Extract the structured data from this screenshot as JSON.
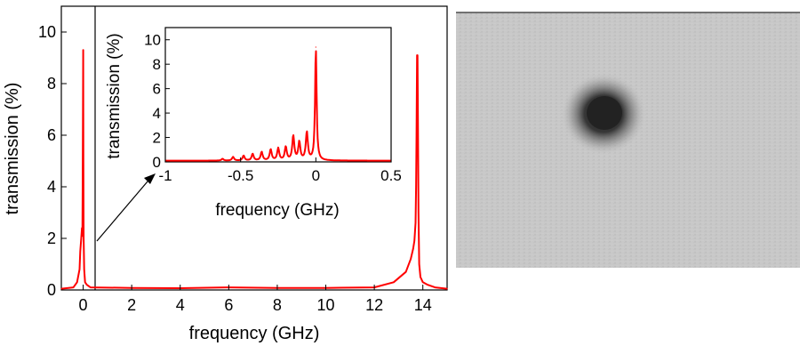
{
  "chart_data": [
    {
      "type": "line",
      "panel": "main",
      "xlabel": "frequency (GHz)",
      "ylabel": "transmission (%)",
      "xlim": [
        -0.9,
        15.0
      ],
      "ylim": [
        0,
        11
      ],
      "xticks": [
        0,
        2,
        4,
        6,
        8,
        10,
        12,
        14
      ],
      "yticks": [
        0,
        2,
        4,
        6,
        8,
        10
      ],
      "grid": false,
      "series_color": "#ff0000",
      "series": [
        {
          "x": [
            -0.9,
            -0.4,
            -0.25,
            -0.15,
            -0.12,
            -0.08,
            -0.05,
            -0.03,
            -0.02,
            -0.01,
            0.0,
            0.01,
            0.02,
            0.04,
            0.08,
            0.15,
            0.3,
            2,
            4,
            6,
            8,
            10,
            12,
            12.8,
            13.3,
            13.5,
            13.6,
            13.65,
            13.7,
            13.72,
            13.74,
            13.76,
            13.78,
            13.8,
            13.82,
            13.85,
            13.9,
            14.0,
            14.2,
            14.5,
            15.0
          ],
          "y": [
            0.05,
            0.1,
            0.3,
            0.8,
            1.5,
            2.0,
            2.4,
            2.1,
            4.0,
            6.5,
            9.3,
            5.0,
            2.0,
            0.8,
            0.3,
            0.2,
            0.1,
            0.08,
            0.07,
            0.1,
            0.08,
            0.08,
            0.1,
            0.3,
            0.7,
            1.2,
            1.6,
            1.9,
            2.6,
            4.0,
            6.0,
            9.1,
            9.1,
            6.5,
            3.0,
            1.0,
            0.5,
            0.3,
            0.2,
            0.1,
            0.05
          ]
        }
      ]
    },
    {
      "type": "line",
      "panel": "inset",
      "xlabel": "frequency (GHz)",
      "ylabel": "transmission (%)",
      "xlim": [
        -1,
        0.5
      ],
      "ylim": [
        0,
        11
      ],
      "xticks": [
        -1,
        -0.5,
        0,
        0.5
      ],
      "xtick_labels": [
        "-1",
        "-0.5",
        "0",
        "0.5"
      ],
      "yticks": [
        0,
        2,
        4,
        6,
        8,
        10
      ],
      "grid": false,
      "series_color": "#ff0000",
      "peaks": [
        {
          "x": -0.62,
          "y": 0.15
        },
        {
          "x": -0.55,
          "y": 0.3
        },
        {
          "x": -0.48,
          "y": 0.4
        },
        {
          "x": -0.42,
          "y": 0.55
        },
        {
          "x": -0.36,
          "y": 0.7
        },
        {
          "x": -0.3,
          "y": 0.9
        },
        {
          "x": -0.25,
          "y": 1.0
        },
        {
          "x": -0.2,
          "y": 1.1
        },
        {
          "x": -0.15,
          "y": 2.0
        },
        {
          "x": -0.11,
          "y": 1.5
        },
        {
          "x": -0.06,
          "y": 2.3
        },
        {
          "x": 0.0,
          "y": 9.3
        }
      ],
      "baseline": 0.1
    }
  ],
  "image_panel": {
    "background": "#c6c6c6",
    "spot_color": "#222222"
  }
}
